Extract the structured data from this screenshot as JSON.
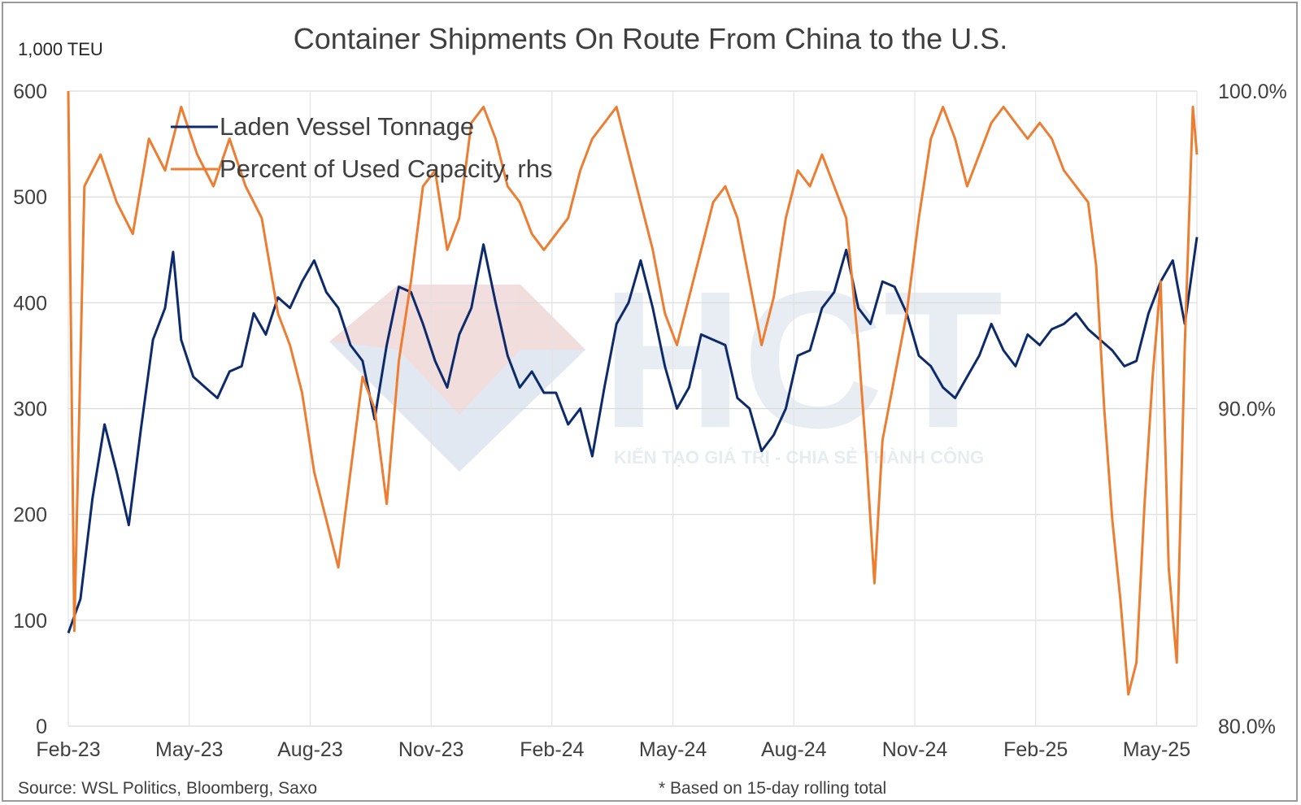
{
  "chart_data": {
    "type": "line",
    "title": "Container Shipments On Route From China to the U.S.",
    "y_unit_label": "1,000 TEU",
    "x_ticks": [
      "Feb-23",
      "May-23",
      "Aug-23",
      "Nov-23",
      "Feb-24",
      "May-24",
      "Aug-24",
      "Nov-24",
      "Feb-25",
      "May-25"
    ],
    "y_left": {
      "ylim": [
        0,
        600
      ],
      "ticks": [
        "0",
        "100",
        "200",
        "300",
        "400",
        "500",
        "600"
      ]
    },
    "y_right": {
      "ylim": [
        80,
        100
      ],
      "ticks": [
        "80.0%",
        "90.0%",
        "100.0%"
      ]
    },
    "grid": true,
    "legend_position": "top-left",
    "x_range_months": [
      0,
      28
    ],
    "series": [
      {
        "name": "Laden Vessel Tonnage",
        "axis": "left",
        "color": "#0d2a6b",
        "points": [
          [
            0.0,
            88
          ],
          [
            0.3,
            120
          ],
          [
            0.6,
            215
          ],
          [
            0.9,
            285
          ],
          [
            1.2,
            240
          ],
          [
            1.5,
            190
          ],
          [
            1.8,
            280
          ],
          [
            2.1,
            365
          ],
          [
            2.4,
            395
          ],
          [
            2.6,
            448
          ],
          [
            2.8,
            365
          ],
          [
            3.1,
            330
          ],
          [
            3.4,
            320
          ],
          [
            3.7,
            310
          ],
          [
            4.0,
            335
          ],
          [
            4.3,
            340
          ],
          [
            4.6,
            390
          ],
          [
            4.9,
            370
          ],
          [
            5.2,
            405
          ],
          [
            5.5,
            395
          ],
          [
            5.8,
            420
          ],
          [
            6.1,
            440
          ],
          [
            6.4,
            410
          ],
          [
            6.7,
            395
          ],
          [
            7.0,
            360
          ],
          [
            7.3,
            345
          ],
          [
            7.6,
            290
          ],
          [
            7.9,
            360
          ],
          [
            8.2,
            415
          ],
          [
            8.5,
            410
          ],
          [
            8.8,
            380
          ],
          [
            9.1,
            345
          ],
          [
            9.4,
            320
          ],
          [
            9.7,
            370
          ],
          [
            10.0,
            395
          ],
          [
            10.3,
            455
          ],
          [
            10.6,
            400
          ],
          [
            10.9,
            350
          ],
          [
            11.2,
            320
          ],
          [
            11.5,
            335
          ],
          [
            11.8,
            315
          ],
          [
            12.1,
            315
          ],
          [
            12.4,
            285
          ],
          [
            12.7,
            300
          ],
          [
            13.0,
            255
          ],
          [
            13.3,
            320
          ],
          [
            13.6,
            380
          ],
          [
            13.9,
            400
          ],
          [
            14.2,
            440
          ],
          [
            14.5,
            395
          ],
          [
            14.8,
            340
          ],
          [
            15.1,
            300
          ],
          [
            15.4,
            320
          ],
          [
            15.7,
            370
          ],
          [
            16.0,
            365
          ],
          [
            16.3,
            360
          ],
          [
            16.6,
            310
          ],
          [
            16.9,
            300
          ],
          [
            17.2,
            260
          ],
          [
            17.5,
            275
          ],
          [
            17.8,
            300
          ],
          [
            18.1,
            350
          ],
          [
            18.4,
            355
          ],
          [
            18.7,
            395
          ],
          [
            19.0,
            410
          ],
          [
            19.3,
            450
          ],
          [
            19.6,
            395
          ],
          [
            19.9,
            380
          ],
          [
            20.2,
            420
          ],
          [
            20.5,
            415
          ],
          [
            20.8,
            390
          ],
          [
            21.1,
            350
          ],
          [
            21.4,
            340
          ],
          [
            21.7,
            320
          ],
          [
            22.0,
            310
          ],
          [
            22.3,
            330
          ],
          [
            22.6,
            350
          ],
          [
            22.9,
            380
          ],
          [
            23.2,
            355
          ],
          [
            23.5,
            340
          ],
          [
            23.8,
            370
          ],
          [
            24.1,
            360
          ],
          [
            24.4,
            375
          ],
          [
            24.7,
            380
          ],
          [
            25.0,
            390
          ],
          [
            25.3,
            375
          ],
          [
            25.6,
            365
          ],
          [
            25.9,
            355
          ],
          [
            26.2,
            340
          ],
          [
            26.5,
            345
          ],
          [
            26.8,
            390
          ],
          [
            27.1,
            420
          ],
          [
            27.4,
            440
          ],
          [
            27.7,
            380
          ],
          [
            28.0,
            462
          ]
        ]
      },
      {
        "name": "Percent of Used Capacity, rhs",
        "axis": "right",
        "color": "#ed7d31",
        "points": [
          [
            0.0,
            100.0
          ],
          [
            0.15,
            83.0
          ],
          [
            0.4,
            97.0
          ],
          [
            0.8,
            98.0
          ],
          [
            1.2,
            96.5
          ],
          [
            1.6,
            95.5
          ],
          [
            2.0,
            98.5
          ],
          [
            2.4,
            97.5
          ],
          [
            2.8,
            99.5
          ],
          [
            3.2,
            98.0
          ],
          [
            3.6,
            97.0
          ],
          [
            4.0,
            98.5
          ],
          [
            4.4,
            97.0
          ],
          [
            4.8,
            96.0
          ],
          [
            5.2,
            93.0
          ],
          [
            5.5,
            92.0
          ],
          [
            5.8,
            90.5
          ],
          [
            6.1,
            88.0
          ],
          [
            6.4,
            86.5
          ],
          [
            6.7,
            85.0
          ],
          [
            7.0,
            88.0
          ],
          [
            7.3,
            91.0
          ],
          [
            7.6,
            90.0
          ],
          [
            7.9,
            87.0
          ],
          [
            8.2,
            91.5
          ],
          [
            8.5,
            94.0
          ],
          [
            8.8,
            97.0
          ],
          [
            9.1,
            97.5
          ],
          [
            9.4,
            95.0
          ],
          [
            9.7,
            96.0
          ],
          [
            10.0,
            99.0
          ],
          [
            10.3,
            99.5
          ],
          [
            10.6,
            98.5
          ],
          [
            10.9,
            97.0
          ],
          [
            11.2,
            96.5
          ],
          [
            11.5,
            95.5
          ],
          [
            11.8,
            95.0
          ],
          [
            12.1,
            95.5
          ],
          [
            12.4,
            96.0
          ],
          [
            12.7,
            97.5
          ],
          [
            13.0,
            98.5
          ],
          [
            13.3,
            99.0
          ],
          [
            13.6,
            99.5
          ],
          [
            13.9,
            98.0
          ],
          [
            14.2,
            96.5
          ],
          [
            14.5,
            95.0
          ],
          [
            14.8,
            93.0
          ],
          [
            15.1,
            92.0
          ],
          [
            15.4,
            93.5
          ],
          [
            15.7,
            95.0
          ],
          [
            16.0,
            96.5
          ],
          [
            16.3,
            97.0
          ],
          [
            16.6,
            96.0
          ],
          [
            16.9,
            94.0
          ],
          [
            17.2,
            92.0
          ],
          [
            17.5,
            93.5
          ],
          [
            17.8,
            96.0
          ],
          [
            18.1,
            97.5
          ],
          [
            18.4,
            97.0
          ],
          [
            18.7,
            98.0
          ],
          [
            19.0,
            97.0
          ],
          [
            19.3,
            96.0
          ],
          [
            19.6,
            92.0
          ],
          [
            19.8,
            88.5
          ],
          [
            20.0,
            84.5
          ],
          [
            20.2,
            89.0
          ],
          [
            20.5,
            91.0
          ],
          [
            20.8,
            93.0
          ],
          [
            21.1,
            96.0
          ],
          [
            21.4,
            98.5
          ],
          [
            21.7,
            99.5
          ],
          [
            22.0,
            98.5
          ],
          [
            22.3,
            97.0
          ],
          [
            22.6,
            98.0
          ],
          [
            22.9,
            99.0
          ],
          [
            23.2,
            99.5
          ],
          [
            23.5,
            99.0
          ],
          [
            23.8,
            98.5
          ],
          [
            24.1,
            99.0
          ],
          [
            24.4,
            98.5
          ],
          [
            24.7,
            97.5
          ],
          [
            25.0,
            97.0
          ],
          [
            25.3,
            96.5
          ],
          [
            25.5,
            94.5
          ],
          [
            25.7,
            90.0
          ],
          [
            25.9,
            86.5
          ],
          [
            26.1,
            84.0
          ],
          [
            26.3,
            81.0
          ],
          [
            26.5,
            82.0
          ],
          [
            26.7,
            87.0
          ],
          [
            26.9,
            91.0
          ],
          [
            27.1,
            94.0
          ],
          [
            27.3,
            85.0
          ],
          [
            27.5,
            82.0
          ],
          [
            27.7,
            92.0
          ],
          [
            27.9,
            99.5
          ],
          [
            28.0,
            98.0
          ]
        ]
      }
    ]
  },
  "source": "Source: WSL Politics, Bloomberg, Saxo",
  "footnote": "* Based on 15-day rolling total",
  "watermark": {
    "logo_text": "HCT",
    "tagline": "KIẾN TẠO GIÁ TRỊ - CHIA SẺ THÀNH CÔNG"
  }
}
